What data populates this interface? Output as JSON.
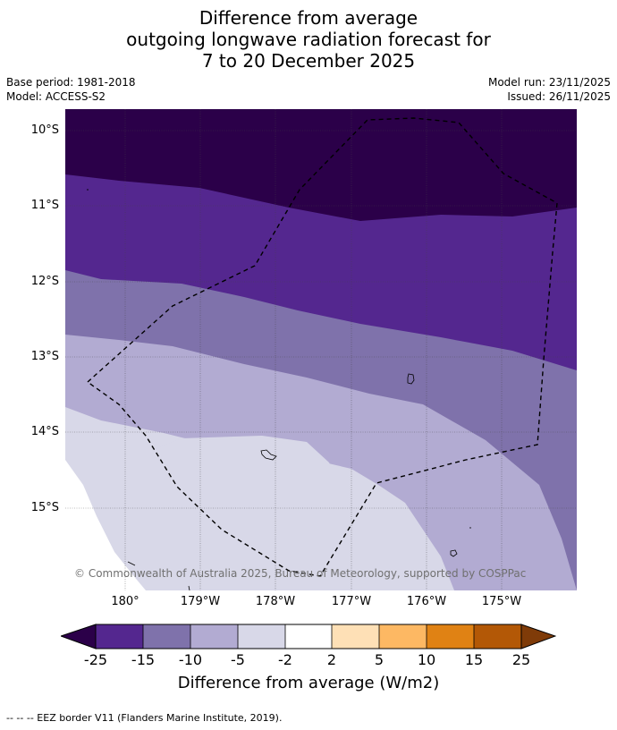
{
  "title": {
    "line1": "Difference from average",
    "line2": "outgoing longwave radiation forecast for",
    "line3": "7 to 20 December 2025"
  },
  "meta": {
    "base_period": "Base period: 1981-2018",
    "model": "Model: ACCESS-S2",
    "model_run": "Model run: 23/11/2025",
    "issued": "Issued: 26/11/2025"
  },
  "map": {
    "lat_labels": [
      "10°S",
      "11°S",
      "12°S",
      "13°S",
      "14°S",
      "15°S"
    ],
    "lon_labels": [
      "180°",
      "179°W",
      "178°W",
      "177°W",
      "176°W",
      "175°W"
    ],
    "copyright": "© Commonwealth of Australia 2025, Bureau of Meteorology, supported by COSPPac"
  },
  "legend": {
    "ticks": [
      "-25",
      "-15",
      "-10",
      "-5",
      "-2",
      "2",
      "5",
      "10",
      "15",
      "25"
    ],
    "label": "Difference from average (W/m2)",
    "colors": {
      "below_min": "#2b0049",
      "bin_-25_-15": "#54278f",
      "bin_-15_-10": "#7f72ab",
      "bin_-10_-5": "#b2abd2",
      "bin_-5_-2": "#d8d8e8",
      "bin_-2_2": "#ffffff",
      "bin_2_5": "#fee0b6",
      "bin_5_10": "#fdb863",
      "bin_10_15": "#e08214",
      "bin_15_25": "#b35806",
      "above_max": "#7f3b08"
    }
  },
  "footer": "--  --  -- EEZ border V11 (Flanders Marine Institute, 2019)."
}
